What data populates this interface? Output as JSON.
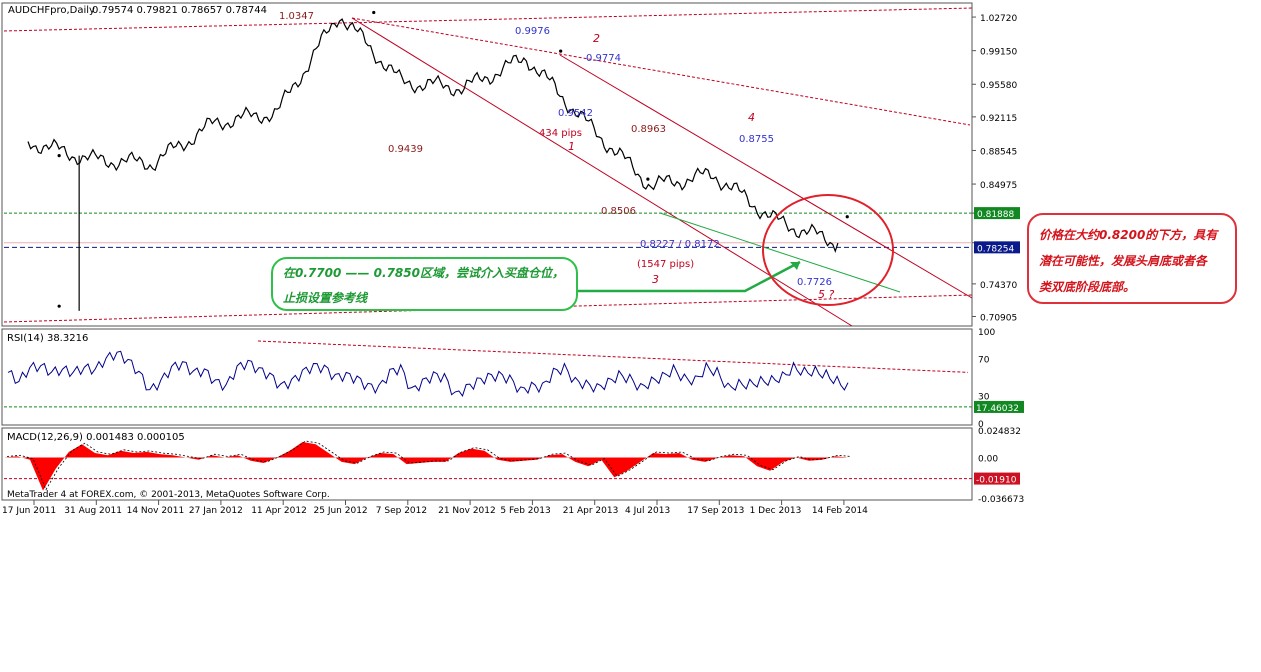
{
  "header": {
    "symbol_label": "AUDCHFpro,Daily",
    "ohlc": "0.79574 0.79821 0.78657 0.78744"
  },
  "footer": {
    "copyright": "MetaTrader 4 at FOREX.com, © 2001-2013, MetaQuotes Software Corp."
  },
  "colors": {
    "price": "#000000",
    "channel": "#c00020",
    "green_line": "#22aa44",
    "annotation_blue": "#3333cc",
    "annotation_red": "#c00020",
    "rsi": "#00008b",
    "macd_hist": "#ff0000",
    "highlight_circle": "#e0202a"
  },
  "annotations": {
    "high_1": "1.0347",
    "p_9976": "0.9976",
    "wave_2": "2",
    "p_9774": "0.9774",
    "p_9542": "0.9542",
    "pips_434": "434 pips",
    "wave_1": "1",
    "p_8963": "0.8963",
    "p_9439": "0.9439",
    "wave_4": "4",
    "p_8755": "0.8755",
    "p_8506": "0.8506",
    "p_range": "0.8227 / 0.8172",
    "pips_1547": "(1547 pips)",
    "wave_3": "3",
    "p_7726": "0.7726",
    "wave_5": "5 ?"
  },
  "green_note": {
    "line1": "在0.7700 —— 0.7850区域，尝试介入买盘仓位，",
    "line2": "止损设置参考线"
  },
  "red_note": {
    "line1": "价格在大约0.8200的下方，具有",
    "line2": "潜在可能性，发展头肩底或者各",
    "line3": "类双底阶段底部。"
  },
  "chart_data": [
    {
      "type": "line",
      "title": "AUDCHFpro,Daily",
      "y_ticks": [
        "1.02720",
        "0.99150",
        "0.95580",
        "0.92115",
        "0.88545",
        "0.84975",
        "0.81888",
        "0.78744",
        "0.74370",
        "0.70905"
      ],
      "ylim": [
        0.7,
        1.04
      ],
      "current_price_label": "0.78254",
      "level_label": "0.81888",
      "x_ticks": [
        "17 Jun 2011",
        "31 Aug 2011",
        "14 Nov 2011",
        "27 Jan 2012",
        "11 Apr 2012",
        "25 Jun 2012",
        "7 Sep 2012",
        "21 Nov 2012",
        "5 Feb 2013",
        "21 Apr 2013",
        "4 Jul 2013",
        "17 Sep 2013",
        "1 Dec 2013",
        "14 Feb 2014"
      ],
      "series": [
        {
          "x": [
            "17 Jun 2011",
            "31 Aug 2011",
            "14 Nov 2011",
            "27 Jan 2012",
            "11 Apr 2012",
            "25 Jun 2012",
            "7 Sep 2012",
            "21 Nov 2012",
            "5 Feb 2013",
            "21 Apr 2013",
            "4 Jul 2013",
            "17 Sep 2013",
            "1 Dec 2013",
            "14 Feb 2014"
          ],
          "values": [
            0.895,
            0.876,
            0.872,
            0.915,
            0.926,
            1.03,
            0.958,
            0.952,
            0.984,
            0.912,
            0.848,
            0.86,
            0.811,
            0.787
          ]
        }
      ],
      "markers": {
        "x_idx": [
          0.5,
          0.5,
          5.55,
          8.55,
          9.95,
          13.15
        ],
        "y": [
          0.88,
          0.72,
          1.032,
          0.991,
          0.855,
          0.815
        ]
      }
    },
    {
      "type": "line",
      "title": "RSI(14) 38.3216",
      "y_ticks": [
        "100",
        "70",
        "30",
        "17.46032",
        "0"
      ],
      "ylim": [
        0,
        100
      ],
      "series": [
        {
          "values": [
            55,
            45,
            60,
            62,
            55,
            58,
            55,
            60,
            58,
            70,
            76,
            68,
            55,
            35,
            45,
            60,
            65,
            55,
            57,
            45,
            40,
            60,
            66,
            58,
            52,
            40,
            45,
            55,
            62,
            60,
            50,
            52,
            48,
            40,
            38,
            55,
            60,
            35,
            44,
            52,
            50,
            30,
            38,
            45,
            50,
            52,
            48,
            35,
            40,
            39,
            55,
            60,
            45,
            42,
            38,
            44,
            52,
            48,
            38,
            45,
            50,
            58,
            48,
            46,
            60,
            55,
            38,
            42,
            42,
            45,
            46,
            50,
            60,
            55,
            56,
            52,
            45,
            38
          ],
          "x_start": 8,
          "x_end": 848
        }
      ]
    },
    {
      "type": "area",
      "title": "MACD(12,26,9) 0.001483 0.000105",
      "y_ticks": [
        "0.024832",
        "0.00",
        "-0.01910",
        "-0.036673"
      ],
      "ylim": [
        -0.036673,
        0.024832
      ],
      "series": [
        {
          "values": [
            0.0,
            0.001,
            -0.002,
            -0.03,
            -0.01,
            0.005,
            0.012,
            0.004,
            0.002,
            0.006,
            0.004,
            0.005,
            0.003,
            0.002,
            0.0,
            -0.002,
            0.002,
            0.0,
            0.002,
            -0.003,
            -0.005,
            0.0,
            0.006,
            0.014,
            0.012,
            0.004,
            -0.004,
            -0.006,
            0.0,
            0.004,
            0.003,
            -0.006,
            -0.005,
            -0.004,
            -0.004,
            0.004,
            0.008,
            0.006,
            -0.002,
            -0.004,
            -0.003,
            -0.002,
            0.002,
            0.003,
            -0.004,
            -0.008,
            -0.002,
            -0.018,
            -0.012,
            -0.004,
            0.004,
            0.003,
            0.004,
            -0.002,
            -0.004,
            0.0,
            0.002,
            0.001,
            -0.008,
            -0.012,
            -0.004,
            0.0,
            -0.003,
            -0.002,
            0.001,
            0.0
          ],
          "x_start": 4,
          "x_end": 848
        }
      ]
    }
  ]
}
